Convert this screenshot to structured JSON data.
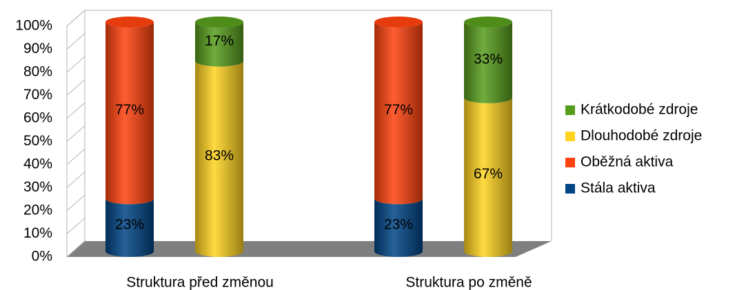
{
  "chart_data": {
    "type": "bar",
    "categories": [
      "Struktura před změnou",
      "Struktura po změně"
    ],
    "series": [
      {
        "name": "Stála aktiva",
        "color": "#004586",
        "stack": 0,
        "values": [
          23,
          23
        ],
        "value_labels": [
          "23%",
          "23%"
        ]
      },
      {
        "name": "Oběžná aktiva",
        "color": "#ff420e",
        "stack": 0,
        "values": [
          77,
          77
        ],
        "value_labels": [
          "77%",
          "77%"
        ]
      },
      {
        "name": "Dlouhodobé zdroje",
        "color": "#ffd320",
        "stack": 1,
        "values": [
          83,
          67
        ],
        "value_labels": [
          "83%",
          "67%"
        ]
      },
      {
        "name": "Krátkodobé zdroje",
        "color": "#579d1c",
        "stack": 1,
        "values": [
          17,
          33
        ],
        "value_labels": [
          "17%",
          "33%"
        ]
      }
    ],
    "ylim": [
      0,
      100
    ],
    "yticks": [
      {
        "value": 0,
        "label": "0%"
      },
      {
        "value": 10,
        "label": "10%"
      },
      {
        "value": 20,
        "label": "20%"
      },
      {
        "value": 30,
        "label": "30%"
      },
      {
        "value": 40,
        "label": "40%"
      },
      {
        "value": 50,
        "label": "50%"
      },
      {
        "value": 60,
        "label": "60%"
      },
      {
        "value": 70,
        "label": "70%"
      },
      {
        "value": 80,
        "label": "80%"
      },
      {
        "value": 90,
        "label": "90%"
      },
      {
        "value": 100,
        "label": "100%"
      }
    ],
    "legend": "right"
  }
}
